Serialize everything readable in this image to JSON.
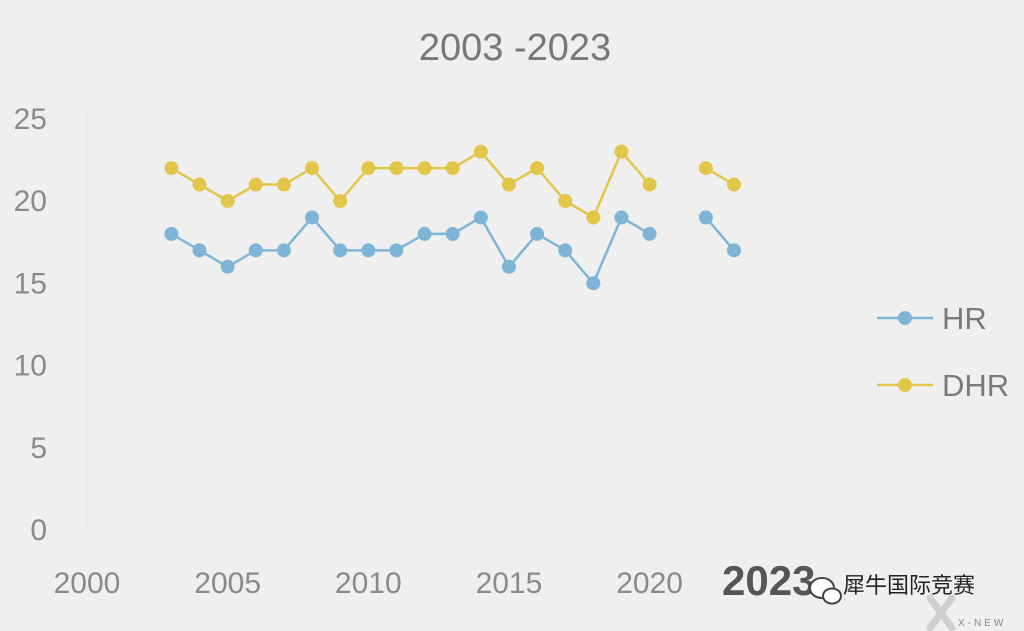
{
  "chart_data": {
    "type": "line",
    "title": "2003 -2023",
    "xlabel": "",
    "ylabel": "",
    "xlim": [
      2000,
      2023.5
    ],
    "ylim": [
      0,
      25
    ],
    "x_ticks": [
      "2000",
      "2005",
      "2010",
      "2015",
      "2020"
    ],
    "y_ticks": [
      "0",
      "5",
      "10",
      "15",
      "20",
      "25"
    ],
    "grid": false,
    "legend_position": "right",
    "x": [
      2003,
      2004,
      2005,
      2006,
      2007,
      2008,
      2009,
      2010,
      2011,
      2012,
      2013,
      2014,
      2015,
      2016,
      2017,
      2018,
      2019,
      2020,
      2021,
      2022,
      2023
    ],
    "series": [
      {
        "name": "HR",
        "color": "#7eb5d6",
        "values": [
          18,
          17,
          16,
          17,
          17,
          19,
          17,
          17,
          17,
          18,
          18,
          19,
          16,
          18,
          17,
          15,
          19,
          18,
          null,
          19,
          17
        ]
      },
      {
        "name": "DHR",
        "color": "#e2c64a",
        "values": [
          22,
          21,
          20,
          21,
          21,
          22,
          20,
          22,
          22,
          22,
          22,
          23,
          21,
          22,
          20,
          19,
          23,
          21,
          null,
          22,
          21
        ]
      }
    ]
  },
  "overlay": {
    "big_year": "2023",
    "watermark": "犀牛国际竞赛",
    "watermark_sub": "X-NEW"
  }
}
